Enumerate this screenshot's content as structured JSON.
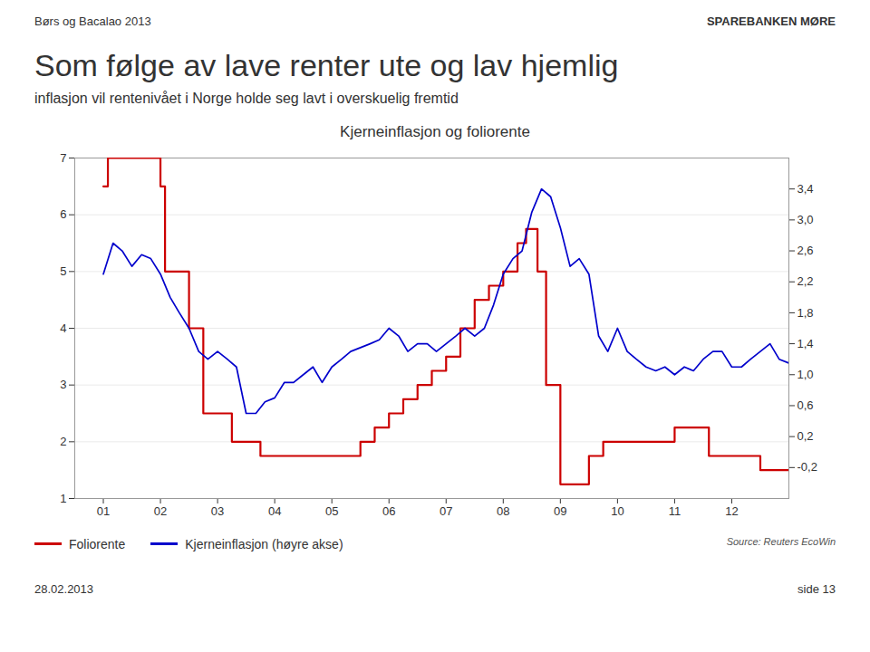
{
  "chart_data": {
    "type": "line",
    "header": "Børs og Bacalao 2013",
    "logo": "SPAREBANKEN MØRE",
    "title": "Som følge av lave renter ute og lav hjemlig",
    "subtitle": "inflasjon vil rentenivået i Norge holde seg lavt i overskuelig fremtid",
    "chart_title": "Kjerneinflasjon og foliorente",
    "source": "Source: Reuters EcoWin",
    "footer_left": "28.02.2013",
    "footer_right": "side 13",
    "xlim": [
      2000.5,
      2013.0
    ],
    "xticks": [
      {
        "value": 2001,
        "label": "01"
      },
      {
        "value": 2002,
        "label": "02"
      },
      {
        "value": 2003,
        "label": "03"
      },
      {
        "value": 2004,
        "label": "04"
      },
      {
        "value": 2005,
        "label": "05"
      },
      {
        "value": 2006,
        "label": "06"
      },
      {
        "value": 2007,
        "label": "07"
      },
      {
        "value": 2008,
        "label": "08"
      },
      {
        "value": 2009,
        "label": "09"
      },
      {
        "value": 2010,
        "label": "10"
      },
      {
        "value": 2011,
        "label": "11"
      },
      {
        "value": 2012,
        "label": "12"
      }
    ],
    "ylim": [
      1,
      7
    ],
    "yticks": [
      1,
      2,
      3,
      4,
      5,
      6,
      7
    ],
    "y2lim": [
      -0.6,
      3.8
    ],
    "y2ticks": [
      {
        "value": -0.2,
        "label": "-0,2"
      },
      {
        "value": 0.2,
        "label": "0,2"
      },
      {
        "value": 0.6,
        "label": "0,6"
      },
      {
        "value": 1.0,
        "label": "1,0"
      },
      {
        "value": 1.4,
        "label": "1,4"
      },
      {
        "value": 1.8,
        "label": "1,8"
      },
      {
        "value": 2.2,
        "label": "2,2"
      },
      {
        "value": 2.6,
        "label": "2,6"
      },
      {
        "value": 3.0,
        "label": "3,0"
      },
      {
        "value": 3.4,
        "label": "3,4"
      }
    ],
    "grid": true,
    "legend": "bottom",
    "series": [
      {
        "name": "Foliorente",
        "type": "step",
        "color": "#cc0000",
        "x": [
          2001.0,
          2001.08,
          2001.5,
          2002.0,
          2002.08,
          2002.5,
          2002.75,
          2003.0,
          2003.25,
          2003.5,
          2003.75,
          2004.0,
          2004.5,
          2005.0,
          2005.5,
          2005.75,
          2006.0,
          2006.25,
          2006.5,
          2006.75,
          2007.0,
          2007.25,
          2007.5,
          2007.75,
          2008.0,
          2008.25,
          2008.4,
          2008.6,
          2008.75,
          2009.0,
          2009.1,
          2009.25,
          2009.5,
          2009.75,
          2010.0,
          2010.5,
          2011.0,
          2011.25,
          2011.5,
          2011.6,
          2011.75,
          2012.0,
          2012.5,
          2012.75,
          2013.0
        ],
        "values": [
          6.5,
          7.0,
          7.0,
          6.5,
          5.0,
          4.0,
          2.5,
          2.5,
          2.0,
          2.0,
          1.75,
          1.75,
          1.75,
          1.75,
          2.0,
          2.25,
          2.5,
          2.75,
          3.0,
          3.25,
          3.5,
          4.0,
          4.5,
          4.75,
          5.0,
          5.5,
          5.75,
          5.0,
          3.0,
          1.25,
          1.25,
          1.25,
          1.75,
          2.0,
          2.0,
          2.0,
          2.25,
          2.25,
          2.25,
          1.75,
          1.75,
          1.75,
          1.5,
          1.5,
          1.5
        ]
      },
      {
        "name": "Kjerneinflasjon (høyre akse)",
        "type": "line",
        "axis": "y2",
        "color": "#0000cc",
        "x": [
          2001.0,
          2001.17,
          2001.33,
          2001.5,
          2001.67,
          2001.83,
          2002.0,
          2002.17,
          2002.33,
          2002.5,
          2002.67,
          2002.83,
          2003.0,
          2003.17,
          2003.33,
          2003.5,
          2003.67,
          2003.83,
          2004.0,
          2004.17,
          2004.33,
          2004.5,
          2004.67,
          2004.83,
          2005.0,
          2005.17,
          2005.33,
          2005.5,
          2005.67,
          2005.83,
          2006.0,
          2006.17,
          2006.33,
          2006.5,
          2006.67,
          2006.83,
          2007.0,
          2007.17,
          2007.33,
          2007.5,
          2007.67,
          2007.83,
          2008.0,
          2008.17,
          2008.33,
          2008.5,
          2008.67,
          2008.83,
          2009.0,
          2009.17,
          2009.33,
          2009.5,
          2009.67,
          2009.83,
          2010.0,
          2010.17,
          2010.33,
          2010.5,
          2010.67,
          2010.83,
          2011.0,
          2011.17,
          2011.33,
          2011.5,
          2011.67,
          2011.83,
          2012.0,
          2012.17,
          2012.33,
          2012.5,
          2012.67,
          2012.83,
          2013.0
        ],
        "values": [
          2.3,
          2.7,
          2.6,
          2.4,
          2.55,
          2.5,
          2.3,
          2.0,
          1.8,
          1.6,
          1.3,
          1.2,
          1.3,
          1.2,
          1.1,
          0.5,
          0.5,
          0.65,
          0.7,
          0.9,
          0.9,
          1.0,
          1.1,
          0.9,
          1.1,
          1.2,
          1.3,
          1.35,
          1.4,
          1.45,
          1.6,
          1.5,
          1.3,
          1.4,
          1.4,
          1.3,
          1.4,
          1.5,
          1.6,
          1.5,
          1.6,
          1.9,
          2.3,
          2.5,
          2.6,
          3.1,
          3.4,
          3.3,
          2.9,
          2.4,
          2.5,
          2.3,
          1.5,
          1.3,
          1.6,
          1.3,
          1.2,
          1.1,
          1.05,
          1.1,
          1.0,
          1.1,
          1.05,
          1.2,
          1.3,
          1.3,
          1.1,
          1.1,
          1.2,
          1.3,
          1.4,
          1.2,
          1.15
        ]
      }
    ]
  }
}
